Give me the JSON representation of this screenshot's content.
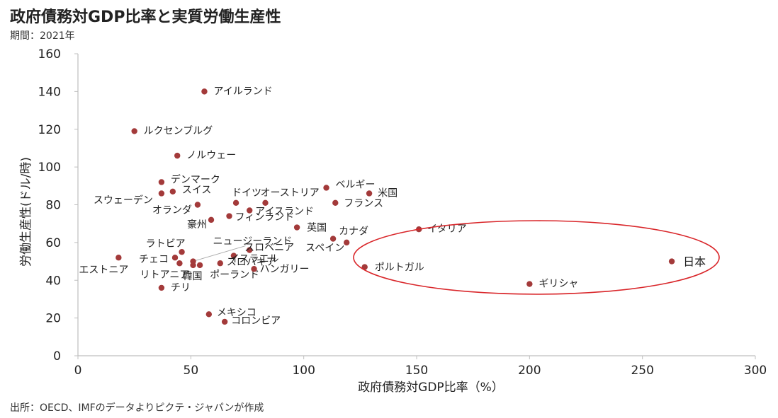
{
  "title": "政府債務対GDP比率と実質労働生産性",
  "subtitle": "期間：2021年",
  "source": "出所：OECD、IMFのデータよりピクテ・ジャパンが作成",
  "colors": {
    "point": "#a33a3a",
    "axis": "#bfbfbf",
    "highlight": "#d9262a",
    "text": "#222222"
  },
  "chart_data": {
    "type": "scatter",
    "title": "",
    "xlabel": "政府債務対GDP比率（%）",
    "ylabel": "労働生産性(ドル/時)",
    "xlim": [
      0,
      300
    ],
    "ylim": [
      0,
      160
    ],
    "xticks": [
      0,
      50,
      100,
      150,
      200,
      250,
      300
    ],
    "yticks": [
      0,
      20,
      40,
      60,
      80,
      100,
      120,
      140,
      160
    ],
    "grid": false,
    "points": [
      {
        "label": "アイルランド",
        "x": 56,
        "y": 140
      },
      {
        "label": "ルクセンブルグ",
        "x": 25,
        "y": 119
      },
      {
        "label": "ノルウェー",
        "x": 44,
        "y": 106
      },
      {
        "label": "デンマーク",
        "x": 37,
        "y": 92
      },
      {
        "label": "スイス",
        "x": 42,
        "y": 87
      },
      {
        "label": "スウェーデン",
        "x": 37,
        "y": 86
      },
      {
        "label": "オランダ",
        "x": 53,
        "y": 80
      },
      {
        "label": "ドイツ",
        "x": 70,
        "y": 81
      },
      {
        "label": "オーストリア",
        "x": 83,
        "y": 81
      },
      {
        "label": "アイスランド",
        "x": 76,
        "y": 77
      },
      {
        "label": "フィンランド",
        "x": 67,
        "y": 74
      },
      {
        "label": "豪州",
        "x": 59,
        "y": 72
      },
      {
        "label": "ベルギー",
        "x": 110,
        "y": 89
      },
      {
        "label": "米国",
        "x": 129,
        "y": 86
      },
      {
        "label": "フランス",
        "x": 114,
        "y": 81
      },
      {
        "label": "英国",
        "x": 97,
        "y": 68
      },
      {
        "label": "カナダ",
        "x": 113,
        "y": 62
      },
      {
        "label": "スペイン",
        "x": 119,
        "y": 60
      },
      {
        "label": "ニュージーランド",
        "x": 51,
        "y": 50
      },
      {
        "label": "ラトビア",
        "x": 46,
        "y": 55
      },
      {
        "label": "チェコ",
        "x": 43,
        "y": 52
      },
      {
        "label": "エストニア",
        "x": 18,
        "y": 52
      },
      {
        "label": "リトアニア",
        "x": 45,
        "y": 49
      },
      {
        "label": "韓国",
        "x": 51,
        "y": 48
      },
      {
        "label": "ポーランド",
        "x": 54,
        "y": 48
      },
      {
        "label": "スロベニア",
        "x": 76,
        "y": 56
      },
      {
        "label": "イスラエル",
        "x": 69,
        "y": 53
      },
      {
        "label": "スロバキア",
        "x": 63,
        "y": 49
      },
      {
        "label": "ハンガリー",
        "x": 78,
        "y": 46
      },
      {
        "label": "イタリア",
        "x": 151,
        "y": 67
      },
      {
        "label": "ポルトガル",
        "x": 127,
        "y": 47
      },
      {
        "label": "日本",
        "x": 263,
        "y": 50
      },
      {
        "label": "ギリシャ",
        "x": 200,
        "y": 38
      },
      {
        "label": "チリ",
        "x": 37,
        "y": 36
      },
      {
        "label": "メキシコ",
        "x": 58,
        "y": 22
      },
      {
        "label": "コロンビア",
        "x": 65,
        "y": 18
      }
    ]
  }
}
